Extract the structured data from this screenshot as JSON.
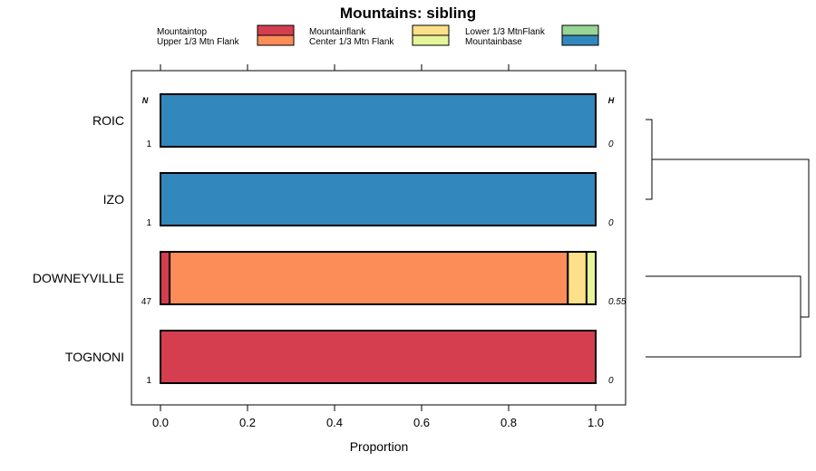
{
  "chart_data": {
    "type": "bar",
    "orientation": "horizontal",
    "stacked": true,
    "title": "Mountains: sibling",
    "xlabel": "Proportion",
    "xlim": [
      -0.07,
      1.07
    ],
    "xticks": [
      "0.0",
      "0.2",
      "0.4",
      "0.6",
      "0.8",
      "1.0"
    ],
    "xtick_values": [
      0,
      0.2,
      0.4,
      0.6,
      0.8,
      1.0
    ],
    "legend_position": "top",
    "series": [
      {
        "name": "Mountaintop",
        "color": "#d53e4f"
      },
      {
        "name": "Upper 1/3 Mtn Flank",
        "color": "#fc8d59"
      },
      {
        "name": "Mountainflank",
        "color": "#fee08b"
      },
      {
        "name": "Center 1/3 Mtn Flank",
        "color": "#e6f598"
      },
      {
        "name": "Lower 1/3 MtnFlank",
        "color": "#99d594"
      },
      {
        "name": "Mountainbase",
        "color": "#3288bd"
      }
    ],
    "n_header": "N",
    "h_header": "H",
    "categories": [
      {
        "name": "ROIC",
        "n": "1",
        "h": "0",
        "values": [
          0,
          0,
          0,
          0,
          0,
          1.0
        ]
      },
      {
        "name": "IZO",
        "n": "1",
        "h": "0",
        "values": [
          0,
          0,
          0,
          0,
          0,
          1.0
        ]
      },
      {
        "name": "DOWNEYVILLE",
        "n": "47",
        "h": "0.55",
        "values": [
          0.021,
          0.915,
          0.043,
          0.021,
          0,
          0
        ]
      },
      {
        "name": "TOGNONI",
        "n": "1",
        "h": "0",
        "values": [
          1.0,
          0,
          0,
          0,
          0,
          0
        ]
      }
    ]
  }
}
